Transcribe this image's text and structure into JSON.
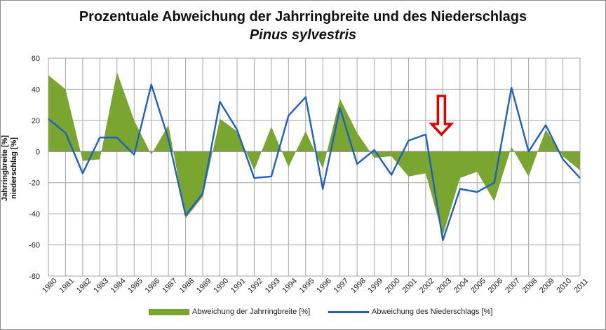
{
  "chart_data": {
    "type": "line",
    "title": "Prozentuale Abweichung der Jahrringbreite und des Niederschlags",
    "subtitle": "Pinus sylvestris",
    "ylabel_line1": "Jahrringbreite [%]",
    "ylabel_line2": "niederschlag [%]",
    "ylim": [
      -80,
      60
    ],
    "yticks": [
      -80,
      -60,
      -40,
      -20,
      0,
      20,
      40,
      60
    ],
    "grid": true,
    "x": [
      "1980",
      "1981",
      "1982",
      "1983",
      "1984",
      "1985",
      "1986",
      "1987",
      "1988",
      "1989",
      "1990",
      "1991",
      "1992",
      "1993",
      "1994",
      "1995",
      "1996",
      "1997",
      "1998",
      "1999",
      "2000",
      "2001",
      "2002",
      "2003",
      "2004",
      "2005",
      "2006",
      "2007",
      "2008",
      "2009",
      "2010",
      "2011"
    ],
    "series": [
      {
        "name": "Abweichung der Jahrringbreite [%]",
        "kind": "area",
        "color": "#7aa530",
        "values": [
          49,
          40,
          -6,
          -5,
          51,
          20,
          -2,
          17,
          -43,
          -29,
          21,
          13,
          -12,
          16,
          -10,
          13,
          -11,
          34,
          12,
          -4,
          -3,
          -16,
          -14,
          -54,
          -17,
          -13,
          -32,
          3,
          -16,
          14,
          -3,
          -12
        ]
      },
      {
        "name": "Abweichung des Niederschlags [%]",
        "kind": "line",
        "color": "#1f5fbf",
        "values": [
          21,
          12,
          -14,
          9,
          9,
          -2,
          43,
          8,
          -41,
          -27,
          32,
          14,
          -17,
          -16,
          23,
          35,
          -24,
          28,
          -8,
          1,
          -15,
          7,
          11,
          -57,
          -24,
          -26,
          -20,
          41,
          0,
          17,
          -5,
          -17
        ]
      }
    ],
    "annotations": [
      {
        "type": "arrow-down",
        "year": "2003",
        "color": "#e00000"
      }
    ],
    "legend_position": "bottom"
  }
}
